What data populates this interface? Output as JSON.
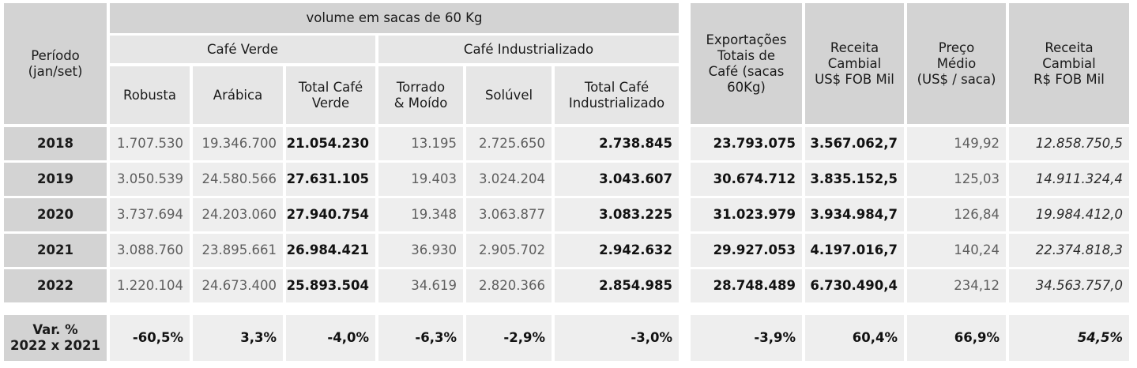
{
  "header": {
    "periodo": "Período\n(jan/set)",
    "volume": "volume em sacas de 60 Kg",
    "cafe_verde": "Café Verde",
    "cafe_industrializado": "Café Industrializado",
    "robusta": "Robusta",
    "arabica": "Arábica",
    "total_verde": "Total Café\nVerde",
    "torrado": "Torrado\n& Moído",
    "soluvel": "Solúvel",
    "total_industrializado": "Total Café\nIndustrializado",
    "exportacoes": "Exportações\nTotais de\nCafé (sacas\n60Kg)",
    "receita_usd": "Receita\nCambial\nUS$ FOB Mil",
    "preco": "Preço\nMédio\n(US$ / saca)",
    "receita_brl": "Receita\nCambial\nR$ FOB Mil"
  },
  "rows": [
    {
      "year": "2018",
      "robusta": "1.707.530",
      "arabica": "19.346.700",
      "total_verde": "21.054.230",
      "torrado": "13.195",
      "soluvel": "2.725.650",
      "total_ind": "2.738.845",
      "exportacoes": "23.793.075",
      "receita_usd": "3.567.062,7",
      "preco": "149,92",
      "receita_brl": "12.858.750,5"
    },
    {
      "year": "2019",
      "robusta": "3.050.539",
      "arabica": "24.580.566",
      "total_verde": "27.631.105",
      "torrado": "19.403",
      "soluvel": "3.024.204",
      "total_ind": "3.043.607",
      "exportacoes": "30.674.712",
      "receita_usd": "3.835.152,5",
      "preco": "125,03",
      "receita_brl": "14.911.324,4"
    },
    {
      "year": "2020",
      "robusta": "3.737.694",
      "arabica": "24.203.060",
      "total_verde": "27.940.754",
      "torrado": "19.348",
      "soluvel": "3.063.877",
      "total_ind": "3.083.225",
      "exportacoes": "31.023.979",
      "receita_usd": "3.934.984,7",
      "preco": "126,84",
      "receita_brl": "19.984.412,0"
    },
    {
      "year": "2021",
      "robusta": "3.088.760",
      "arabica": "23.895.661",
      "total_verde": "26.984.421",
      "torrado": "36.930",
      "soluvel": "2.905.702",
      "total_ind": "2.942.632",
      "exportacoes": "29.927.053",
      "receita_usd": "4.197.016,7",
      "preco": "140,24",
      "receita_brl": "22.374.818,3"
    },
    {
      "year": "2022",
      "robusta": "1.220.104",
      "arabica": "24.673.400",
      "total_verde": "25.893.504",
      "torrado": "34.619",
      "soluvel": "2.820.366",
      "total_ind": "2.854.985",
      "exportacoes": "28.748.489",
      "receita_usd": "6.730.490,4",
      "preco": "234,12",
      "receita_brl": "34.563.757,0"
    }
  ],
  "variation": {
    "label": "Var. %\n2022 x 2021",
    "robusta": "-60,5%",
    "arabica": "3,3%",
    "total_verde": "-4,0%",
    "torrado": "-6,3%",
    "soluvel": "-2,9%",
    "total_ind": "-3,0%",
    "exportacoes": "-3,9%",
    "receita_usd": "60,4%",
    "preco": "66,9%",
    "receita_brl": "54,5%"
  }
}
